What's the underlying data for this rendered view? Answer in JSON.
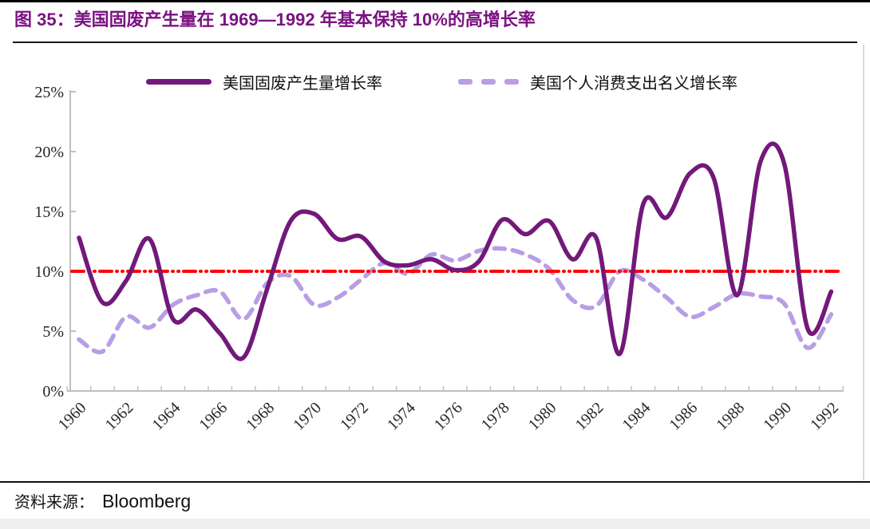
{
  "page": {
    "title": "图 35：美国固废产生量在 1969—1992 年基本保持 10%的高增长率",
    "source_label": "资料来源：",
    "source_value": "Bloomberg"
  },
  "colors": {
    "title": "#7B1282",
    "solid_line": "#72197A",
    "dashed_line": "#B89EE4",
    "reference_line": "#FE0000",
    "axis": "#BFBFBF",
    "tick_text": "#262626"
  },
  "chart_data": {
    "type": "line",
    "title": "图 35：美国固废产生量在 1969—1992 年基本保持 10%的高增长率",
    "x": [
      1960,
      1961,
      1962,
      1963,
      1964,
      1965,
      1966,
      1967,
      1968,
      1969,
      1970,
      1971,
      1972,
      1973,
      1974,
      1975,
      1976,
      1977,
      1978,
      1979,
      1980,
      1981,
      1982,
      1983,
      1984,
      1985,
      1986,
      1987,
      1988,
      1989,
      1990,
      1991,
      1992
    ],
    "x_tick_labels": [
      "1960",
      "1962",
      "1964",
      "1966",
      "1968",
      "1970",
      "1972",
      "1974",
      "1976",
      "1978",
      "1980",
      "1982",
      "1984",
      "1986",
      "1988",
      "1990",
      "1992"
    ],
    "y_ticks": [
      "0%",
      "5%",
      "10%",
      "15%",
      "20%",
      "25%"
    ],
    "y_tick_values": [
      0,
      5,
      10,
      15,
      20,
      25
    ],
    "ylim": [
      0,
      25
    ],
    "grid": false,
    "legend_position": "top",
    "series": [
      {
        "name": "美国固废产生量增长率",
        "style": "solid",
        "values": [
          12.8,
          7.4,
          9.2,
          12.7,
          6.0,
          6.8,
          4.8,
          2.8,
          8.5,
          14.2,
          14.8,
          12.7,
          12.9,
          10.8,
          10.5,
          11.0,
          10.1,
          10.8,
          14.3,
          13.1,
          14.2,
          11.0,
          12.8,
          3.1,
          15.6,
          14.5,
          18.2,
          17.8,
          8.0,
          19.2,
          19.0,
          5.2,
          8.3
        ]
      },
      {
        "name": "美国个人消费支出名义增长率",
        "style": "dashed",
        "values": [
          4.3,
          3.3,
          6.2,
          5.3,
          7.2,
          8.0,
          8.3,
          6.0,
          9.0,
          9.6,
          7.2,
          7.8,
          9.3,
          10.7,
          9.8,
          11.4,
          10.9,
          11.7,
          11.9,
          11.4,
          10.2,
          7.6,
          7.1,
          10.0,
          9.3,
          7.8,
          6.2,
          7.0,
          8.1,
          7.9,
          7.3,
          3.6,
          6.4
        ]
      }
    ],
    "reference_line": {
      "value": 10,
      "style": "dash-dot-dot"
    }
  }
}
